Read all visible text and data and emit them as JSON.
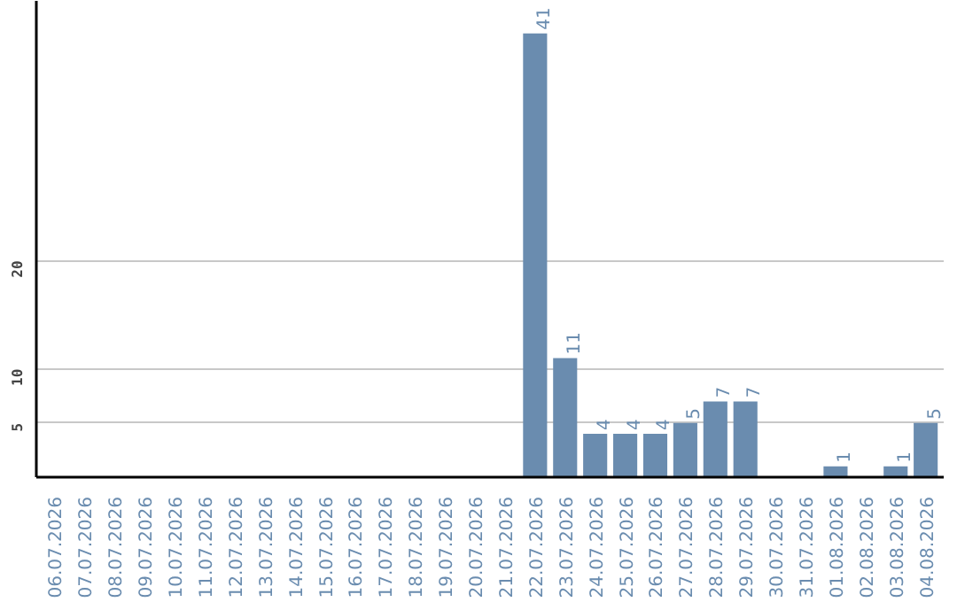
{
  "chart_data": {
    "type": "bar",
    "categories": [
      "06.07.2026",
      "07.07.2026",
      "08.07.2026",
      "09.07.2026",
      "10.07.2026",
      "11.07.2026",
      "12.07.2026",
      "13.07.2026",
      "14.07.2026",
      "15.07.2026",
      "16.07.2026",
      "17.07.2026",
      "18.07.2026",
      "19.07.2026",
      "20.07.2026",
      "21.07.2026",
      "22.07.2026",
      "23.07.2026",
      "24.07.2026",
      "25.07.2026",
      "26.07.2026",
      "27.07.2026",
      "28.07.2026",
      "29.07.2026",
      "30.07.2026",
      "31.07.2026",
      "01.08.2026",
      "02.08.2026",
      "03.08.2026",
      "04.08.2026"
    ],
    "values": [
      0,
      0,
      0,
      0,
      0,
      0,
      0,
      0,
      0,
      0,
      0,
      0,
      0,
      0,
      0,
      0,
      41,
      11,
      4,
      4,
      4,
      5,
      7,
      7,
      0,
      0,
      1,
      0,
      1,
      5
    ],
    "value_labels": [
      null,
      null,
      null,
      null,
      null,
      null,
      null,
      null,
      null,
      null,
      null,
      null,
      null,
      null,
      null,
      null,
      "41",
      "11",
      "4",
      "4",
      "4",
      "5",
      "7",
      "7",
      null,
      null,
      "1",
      null,
      "1",
      "5"
    ],
    "color": "#6a8caf",
    "ylim": [
      0,
      44
    ],
    "yticks": [
      5,
      10,
      20
    ],
    "grid": "y"
  }
}
